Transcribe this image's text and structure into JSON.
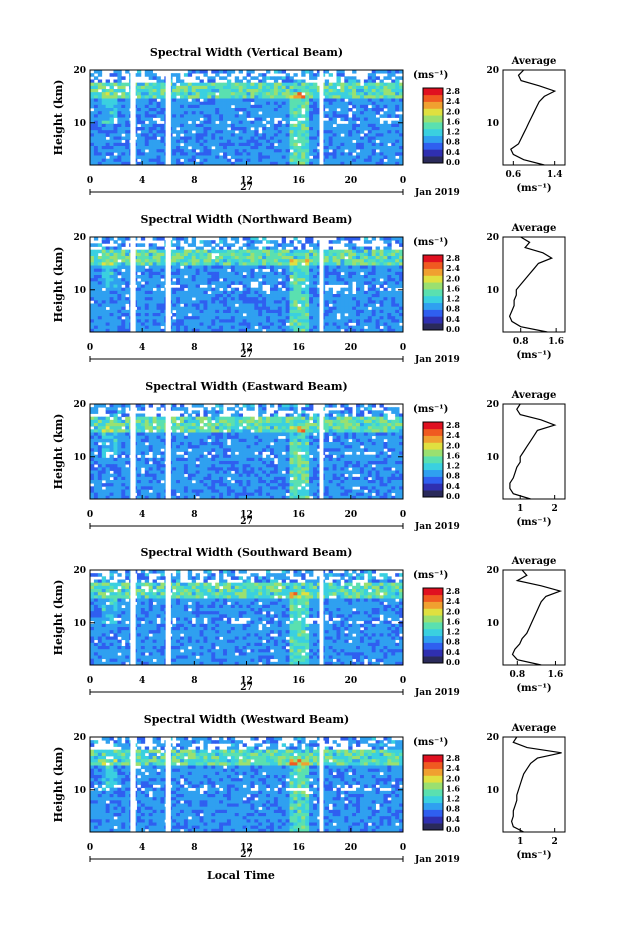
{
  "figure": {
    "footer_xlabel": "Local Time",
    "date_label": "Jan 2019",
    "day_label": "27",
    "ylabel": "Height (km)",
    "unit": "(ms⁻¹)",
    "avg_title": "Average"
  },
  "colors": {
    "scale": [
      "#2a2a5a",
      "#2f2fb0",
      "#2f5ff0",
      "#2fa0f0",
      "#3ad0e0",
      "#5ae0b0",
      "#9ae070",
      "#e0e040",
      "#f0a030",
      "#f05a20",
      "#e01020"
    ]
  },
  "chart_data": [
    {
      "type": "heatmap",
      "title": "Spectral Width (Vertical Beam)",
      "x_ticks": [
        "0",
        "4",
        "8",
        "12",
        "16",
        "20",
        "0"
      ],
      "y_ticks": [
        "20",
        "10"
      ],
      "colorbar_ticks": [
        "2.8",
        "2.4",
        "2.0",
        "1.6",
        "1.2",
        "0.8",
        "0.4",
        "0.0"
      ],
      "xlim": [
        0,
        24
      ],
      "ylim": [
        2,
        20
      ],
      "gaps_hours": [
        [
          3.1,
          3.5
        ],
        [
          5.8,
          6.2
        ],
        [
          17.6,
          17.9
        ]
      ],
      "avg_ticks": [
        "0.6",
        "1.4"
      ],
      "avg_xlim": [
        0.4,
        1.6
      ],
      "avg_profile": {
        "height": [
          2,
          3,
          4,
          5,
          6,
          7,
          8,
          9,
          10,
          11,
          12,
          13,
          14,
          15,
          16,
          17,
          18,
          19,
          20
        ],
        "value": [
          1.2,
          0.8,
          0.6,
          0.55,
          0.7,
          0.75,
          0.8,
          0.85,
          0.9,
          0.95,
          1.0,
          1.05,
          1.1,
          1.2,
          1.4,
          1.1,
          0.75,
          0.7,
          0.8
        ]
      }
    },
    {
      "type": "heatmap",
      "title": "Spectral Width (Northward Beam)",
      "x_ticks": [
        "0",
        "4",
        "8",
        "12",
        "16",
        "20",
        "0"
      ],
      "y_ticks": [
        "20",
        "10"
      ],
      "colorbar_ticks": [
        "2.8",
        "2.4",
        "2.0",
        "1.6",
        "1.2",
        "0.8",
        "0.4",
        "0.0"
      ],
      "xlim": [
        0,
        24
      ],
      "ylim": [
        2,
        20
      ],
      "gaps_hours": [
        [
          3.1,
          3.5
        ],
        [
          5.8,
          6.2
        ],
        [
          17.6,
          17.9
        ]
      ],
      "avg_ticks": [
        "0.8",
        "1.6"
      ],
      "avg_xlim": [
        0.4,
        1.8
      ],
      "avg_profile": {
        "height": [
          2,
          3,
          4,
          5,
          6,
          7,
          8,
          9,
          10,
          11,
          12,
          13,
          14,
          15,
          16,
          17,
          18,
          19,
          20
        ],
        "value": [
          1.4,
          0.8,
          0.6,
          0.55,
          0.6,
          0.65,
          0.65,
          0.7,
          0.7,
          0.8,
          0.9,
          1.0,
          1.1,
          1.2,
          1.5,
          1.3,
          0.9,
          1.0,
          0.8
        ]
      }
    },
    {
      "type": "heatmap",
      "title": "Spectral Width (Eastward Beam)",
      "x_ticks": [
        "0",
        "4",
        "8",
        "12",
        "16",
        "20",
        "0"
      ],
      "y_ticks": [
        "20",
        "10"
      ],
      "colorbar_ticks": [
        "2.8",
        "2.4",
        "2.0",
        "1.6",
        "1.2",
        "0.8",
        "0.4",
        "0.0"
      ],
      "xlim": [
        0,
        24
      ],
      "ylim": [
        2,
        20
      ],
      "gaps_hours": [
        [
          3.1,
          3.5
        ],
        [
          5.8,
          6.2
        ],
        [
          17.6,
          17.9
        ]
      ],
      "avg_ticks": [
        "1",
        "2"
      ],
      "avg_xlim": [
        0.5,
        2.3
      ],
      "avg_profile": {
        "height": [
          2,
          3,
          4,
          5,
          6,
          7,
          8,
          9,
          10,
          11,
          12,
          13,
          14,
          15,
          16,
          17,
          18,
          19,
          20
        ],
        "value": [
          1.3,
          0.8,
          0.7,
          0.7,
          0.8,
          0.85,
          0.9,
          1.0,
          1.0,
          1.1,
          1.2,
          1.3,
          1.4,
          1.5,
          2.0,
          1.6,
          1.0,
          0.9,
          1.0
        ]
      }
    },
    {
      "type": "heatmap",
      "title": "Spectral Width (Southward Beam)",
      "x_ticks": [
        "0",
        "4",
        "8",
        "12",
        "16",
        "20",
        "0"
      ],
      "y_ticks": [
        "20",
        "10"
      ],
      "colorbar_ticks": [
        "2.8",
        "2.4",
        "2.0",
        "1.6",
        "1.2",
        "0.8",
        "0.4",
        "0.0"
      ],
      "xlim": [
        0,
        24
      ],
      "ylim": [
        2,
        20
      ],
      "gaps_hours": [
        [
          3.1,
          3.5
        ],
        [
          5.8,
          6.2
        ],
        [
          17.6,
          17.9
        ]
      ],
      "avg_ticks": [
        "0.8",
        "1.6"
      ],
      "avg_xlim": [
        0.5,
        1.8
      ],
      "avg_profile": {
        "height": [
          2,
          3,
          4,
          5,
          6,
          7,
          8,
          9,
          10,
          11,
          12,
          13,
          14,
          15,
          16,
          17,
          18,
          19,
          20
        ],
        "value": [
          1.3,
          0.8,
          0.7,
          0.75,
          0.85,
          0.9,
          1.0,
          1.05,
          1.1,
          1.15,
          1.2,
          1.25,
          1.3,
          1.4,
          1.7,
          1.3,
          0.8,
          1.0,
          0.9
        ]
      }
    },
    {
      "type": "heatmap",
      "title": "Spectral Width (Westward Beam)",
      "x_ticks": [
        "0",
        "4",
        "8",
        "12",
        "16",
        "20",
        "0"
      ],
      "y_ticks": [
        "20",
        "10"
      ],
      "colorbar_ticks": [
        "2.8",
        "2.4",
        "2.0",
        "1.6",
        "1.2",
        "0.8",
        "0.4",
        "0.0"
      ],
      "xlim": [
        0,
        24
      ],
      "ylim": [
        2,
        20
      ],
      "gaps_hours": [
        [
          3.1,
          3.5
        ],
        [
          5.8,
          6.2
        ],
        [
          17.6,
          17.9
        ]
      ],
      "avg_ticks": [
        "1",
        "2"
      ],
      "avg_xlim": [
        0.5,
        2.3
      ],
      "avg_profile": {
        "height": [
          2,
          3,
          4,
          5,
          6,
          7,
          8,
          9,
          10,
          11,
          12,
          13,
          14,
          15,
          16,
          17,
          18,
          19,
          20
        ],
        "value": [
          1.1,
          0.8,
          0.75,
          0.8,
          0.8,
          0.85,
          0.9,
          0.9,
          0.95,
          1.0,
          1.05,
          1.1,
          1.2,
          1.3,
          1.5,
          2.2,
          1.2,
          0.8,
          0.9
        ]
      }
    }
  ]
}
